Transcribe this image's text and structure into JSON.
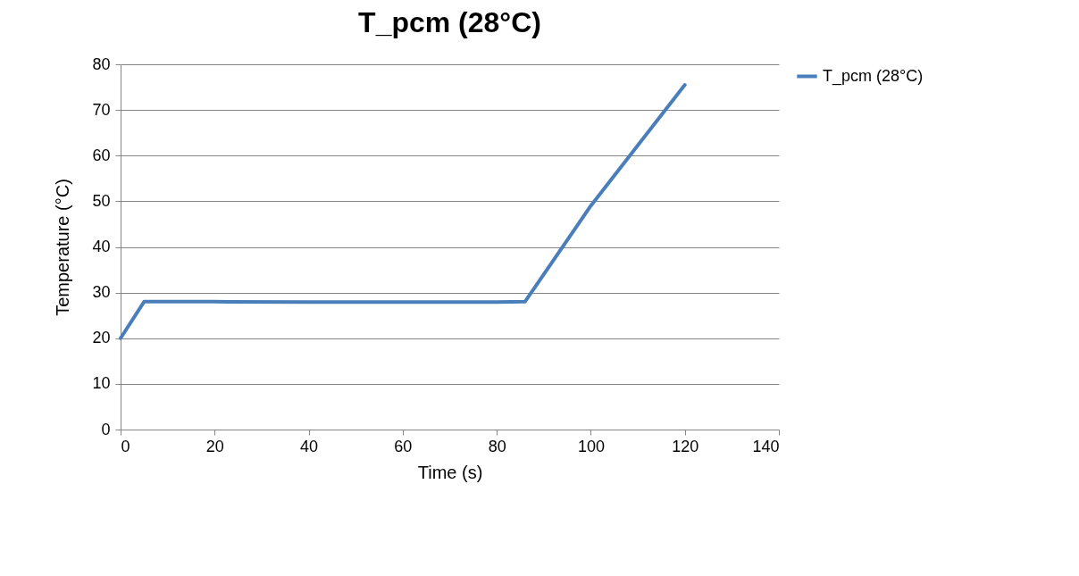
{
  "chart_data": {
    "type": "line",
    "title": "T_pcm (28°C)",
    "xlabel": "Time (s)",
    "ylabel": "Temperature (°C)",
    "xlim": [
      0,
      140
    ],
    "xticks": [
      0,
      20,
      40,
      60,
      80,
      100,
      120,
      140
    ],
    "ylim": [
      0,
      80
    ],
    "yticks": [
      0,
      10,
      20,
      30,
      40,
      50,
      60,
      70,
      80
    ],
    "grid": "y",
    "legend": "right",
    "marker": "none",
    "line_style": "solid",
    "series": [
      {
        "name": "T_pcm (28°C)",
        "color": "#4a7ebb",
        "x": [
          0,
          5,
          20,
          40,
          60,
          80,
          86,
          100,
          120
        ],
        "values": [
          20,
          28,
          28,
          27.9,
          27.9,
          27.9,
          28,
          49,
          75.5
        ]
      }
    ]
  }
}
